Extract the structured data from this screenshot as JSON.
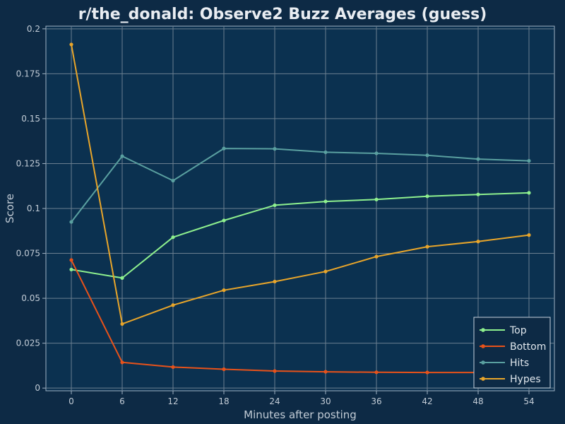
{
  "chart_data": {
    "type": "line",
    "title": "r/the_donald: Observe2 Buzz Averages (guess)",
    "xlabel": "Minutes after posting",
    "ylabel": "Score",
    "x": [
      0,
      6,
      12,
      18,
      24,
      30,
      36,
      42,
      48,
      54
    ],
    "x_ticks": [
      "0",
      "6",
      "12",
      "18",
      "24",
      "30",
      "36",
      "42",
      "48",
      "54"
    ],
    "xlim": [
      -3,
      57
    ],
    "ylim": [
      -0.0015,
      0.2015
    ],
    "y_ticks": [
      0,
      0.025,
      0.05,
      0.075,
      0.1,
      0.125,
      0.15,
      0.175,
      0.2
    ],
    "y_tick_labels": [
      "0",
      "0.025",
      "0.05",
      "0.075",
      "0.1",
      "0.125",
      "0.15",
      "0.175",
      "0.2"
    ],
    "grid": true,
    "legend_position": "bottom-right",
    "series": [
      {
        "name": "Top",
        "color": "#8ef08e",
        "values": [
          0.066,
          0.0613,
          0.084,
          0.0933,
          0.1018,
          0.1039,
          0.105,
          0.1068,
          0.1078,
          0.1087
        ]
      },
      {
        "name": "Bottom",
        "color": "#e8521a",
        "values": [
          0.0713,
          0.0143,
          0.0117,
          0.0105,
          0.0095,
          0.0091,
          0.0088,
          0.0087,
          0.0087,
          0.0087
        ]
      },
      {
        "name": "Hits",
        "color": "#5aa0a0",
        "values": [
          0.0925,
          0.1291,
          0.1155,
          0.1334,
          0.1332,
          0.1313,
          0.1307,
          0.1296,
          0.1275,
          0.1265
        ]
      },
      {
        "name": "Hypes",
        "color": "#e8a52a",
        "values": [
          0.1913,
          0.0357,
          0.0462,
          0.0545,
          0.0593,
          0.0649,
          0.0732,
          0.0787,
          0.0816,
          0.0852
        ]
      }
    ]
  }
}
